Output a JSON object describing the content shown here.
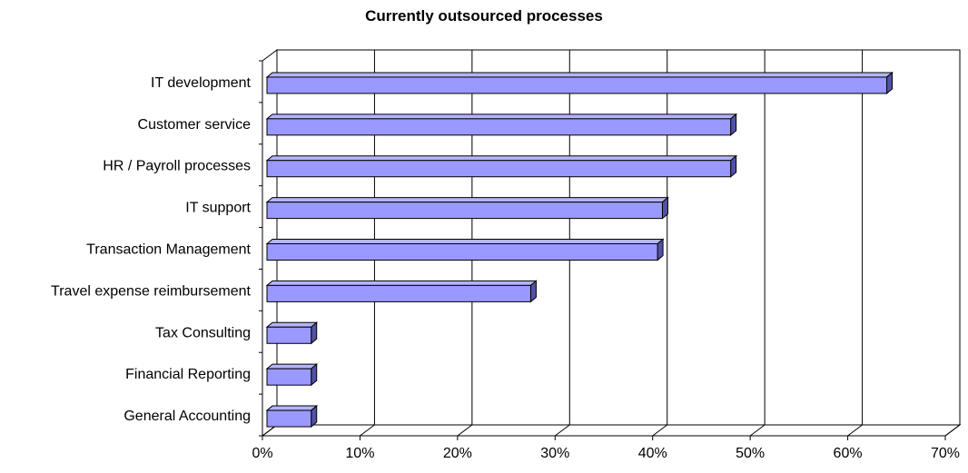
{
  "chart_data": {
    "type": "bar",
    "orientation": "horizontal",
    "title": "Currently outsourced processes",
    "xlabel": "",
    "ylabel": "",
    "categories": [
      "IT development",
      "Customer service",
      "HR / Payroll processes",
      "IT support",
      "Transaction Management",
      "Travel expense reimbursement",
      "Tax Consulting",
      "Financial Reporting",
      "General Accounting"
    ],
    "values": [
      64,
      48,
      48,
      41,
      40.5,
      27.5,
      5,
      5,
      5
    ],
    "value_unit": "%",
    "xlim": [
      0,
      70
    ],
    "x_ticks": [
      "0%",
      "10%",
      "20%",
      "30%",
      "40%",
      "50%",
      "60%",
      "70%"
    ],
    "grid": "vertical",
    "legend": "none",
    "colors": {
      "bar_front": "#9999ff",
      "bar_top": "#b3b3ff",
      "bar_side": "#5252a3",
      "bar_outline": "#000000",
      "gridline": "#000000",
      "background": "#ffffff"
    }
  }
}
